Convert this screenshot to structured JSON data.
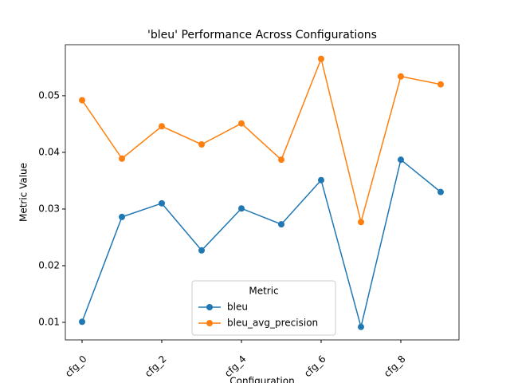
{
  "chart_data": {
    "type": "line",
    "title": "'bleu' Performance Across Configurations",
    "x_label": "Configuration",
    "y_label": "Metric Value",
    "categories": [
      "cfg_0",
      null,
      "cfg_2",
      null,
      "cfg_4",
      null,
      "cfg_6",
      null,
      "cfg_8",
      null
    ],
    "series": [
      {
        "name": "bleu",
        "color": "#1f77b4",
        "values": [
          0.0101,
          0.0286,
          0.031,
          0.0227,
          0.0301,
          0.0273,
          0.0351,
          0.0092,
          0.0387,
          0.033
        ]
      },
      {
        "name": "bleu_avg_precision",
        "color": "#ff7f0e",
        "values": [
          0.0492,
          0.0389,
          0.0446,
          0.0414,
          0.0451,
          0.0387,
          0.0565,
          0.0277,
          0.0534,
          0.052
        ]
      }
    ],
    "ylim": [
      0.0069,
      0.059
    ],
    "yticks": [
      0.01,
      0.02,
      0.03,
      0.04,
      0.05
    ],
    "legend_title": "Metric",
    "legend_position": "lower center",
    "grid": false
  }
}
